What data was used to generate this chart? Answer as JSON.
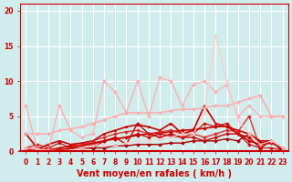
{
  "title": "",
  "xlabel": "Vent moyen/en rafales ( km/h )",
  "ylabel": "",
  "bg_color": "#d0ecec",
  "grid_color": "#ffffff",
  "x_ticks": [
    0,
    1,
    2,
    3,
    4,
    5,
    6,
    7,
    8,
    9,
    10,
    11,
    12,
    13,
    14,
    15,
    16,
    17,
    18,
    19,
    20,
    21,
    22,
    23
  ],
  "y_ticks": [
    0,
    5,
    10,
    15,
    20
  ],
  "ylim": [
    0,
    21
  ],
  "xlim": [
    -0.5,
    23.5
  ],
  "series": [
    {
      "x": [
        0,
        1,
        2,
        3,
        4,
        5,
        6,
        7,
        8,
        9,
        10,
        11,
        12,
        13,
        14,
        15,
        16,
        17,
        18,
        19,
        20,
        21,
        22,
        23
      ],
      "y": [
        2.5,
        0.5,
        0.2,
        0.5,
        0.8,
        0.9,
        1.2,
        1.5,
        1.8,
        2.0,
        2.3,
        2.5,
        2.6,
        2.8,
        3.0,
        3.1,
        3.3,
        3.5,
        3.6,
        2.5,
        1.5,
        1.0,
        1.2,
        0.5
      ],
      "color": "#cc0000",
      "alpha": 1.0,
      "marker": "D",
      "markersize": 2,
      "linewidth": 1.2
    },
    {
      "x": [
        0,
        1,
        2,
        3,
        4,
        5,
        6,
        7,
        8,
        9,
        10,
        11,
        12,
        13,
        14,
        15,
        16,
        17,
        18,
        19,
        20,
        21,
        22,
        23
      ],
      "y": [
        0.5,
        0.3,
        1.0,
        1.5,
        1.0,
        1.2,
        1.5,
        2.5,
        3.0,
        3.5,
        3.8,
        3.5,
        3.0,
        4.0,
        2.5,
        3.0,
        6.5,
        4.0,
        3.5,
        3.0,
        2.5,
        1.5,
        1.5,
        0.3
      ],
      "color": "#cc0000",
      "alpha": 1.0,
      "marker": "^",
      "markersize": 2,
      "linewidth": 1.2
    },
    {
      "x": [
        0,
        1,
        2,
        3,
        4,
        5,
        6,
        7,
        8,
        9,
        10,
        11,
        12,
        13,
        14,
        15,
        16,
        17,
        18,
        19,
        20,
        21,
        22,
        23
      ],
      "y": [
        0.2,
        0.1,
        0.5,
        1.2,
        0.5,
        0.8,
        1.0,
        1.5,
        1.8,
        2.0,
        2.5,
        2.0,
        2.5,
        2.2,
        2.0,
        2.5,
        4.0,
        3.5,
        4.0,
        2.5,
        1.0,
        0.5,
        0.5,
        0.2
      ],
      "color": "#cc0000",
      "alpha": 0.85,
      "marker": "D",
      "markersize": 2,
      "linewidth": 1.0
    },
    {
      "x": [
        0,
        1,
        2,
        3,
        4,
        5,
        6,
        7,
        8,
        9,
        10,
        11,
        12,
        13,
        14,
        15,
        16,
        17,
        18,
        19,
        20,
        21,
        22,
        23
      ],
      "y": [
        0.5,
        1.0,
        0.5,
        0.2,
        0.5,
        1.0,
        1.5,
        2.0,
        2.5,
        2.8,
        3.0,
        2.5,
        2.8,
        3.0,
        2.5,
        2.5,
        2.0,
        2.5,
        3.0,
        2.8,
        5.0,
        0.5,
        1.5,
        0.5
      ],
      "color": "#dd2222",
      "alpha": 0.9,
      "marker": "D",
      "markersize": 2,
      "linewidth": 1.0
    },
    {
      "x": [
        0,
        1,
        2,
        3,
        4,
        5,
        6,
        7,
        8,
        9,
        10,
        11,
        12,
        13,
        14,
        15,
        16,
        17,
        18,
        19,
        20,
        21,
        22,
        23
      ],
      "y": [
        6.5,
        0.3,
        0.2,
        6.5,
        3.0,
        2.0,
        2.5,
        10.0,
        8.5,
        5.5,
        10.0,
        5.0,
        10.5,
        10.0,
        6.5,
        9.5,
        10.0,
        8.5,
        9.5,
        5.0,
        6.5,
        5.0,
        5.0,
        5.0
      ],
      "color": "#ffaaaa",
      "alpha": 0.85,
      "marker": "D",
      "markersize": 2,
      "linewidth": 1.0
    },
    {
      "x": [
        0,
        1,
        2,
        3,
        4,
        5,
        6,
        7,
        8,
        9,
        10,
        11,
        12,
        13,
        14,
        15,
        16,
        17,
        18,
        19,
        20,
        21,
        22,
        23
      ],
      "y": [
        2.5,
        2.5,
        2.5,
        3.0,
        3.2,
        3.5,
        4.0,
        4.5,
        5.0,
        5.5,
        5.5,
        5.5,
        5.5,
        5.8,
        6.0,
        6.0,
        6.2,
        6.5,
        6.5,
        7.0,
        7.5,
        8.0,
        5.0,
        5.0
      ],
      "color": "#ffaaaa",
      "alpha": 0.9,
      "marker": "D",
      "markersize": 2,
      "linewidth": 1.2
    },
    {
      "x": [
        0,
        1,
        2,
        3,
        4,
        5,
        6,
        7,
        8,
        9,
        10,
        11,
        12,
        13,
        14,
        15,
        16,
        17,
        18,
        19,
        20,
        21,
        22,
        23
      ],
      "y": [
        0.2,
        0.1,
        0.2,
        0.2,
        0.5,
        0.5,
        0.5,
        1.5,
        2.0,
        1.0,
        4.0,
        2.5,
        2.0,
        2.5,
        2.0,
        2.0,
        1.5,
        2.0,
        2.5,
        2.5,
        2.0,
        0.5,
        1.5,
        0.1
      ],
      "color": "#cc0000",
      "alpha": 1.0,
      "marker": "D",
      "markersize": 2,
      "linewidth": 1.0
    },
    {
      "x": [
        0,
        1,
        2,
        3,
        4,
        5,
        6,
        7,
        8,
        9,
        10,
        11,
        12,
        13,
        14,
        15,
        16,
        17,
        18,
        19,
        20,
        21,
        22,
        23
      ],
      "y": [
        0.1,
        0.1,
        0.1,
        0.1,
        0.3,
        0.5,
        0.5,
        0.5,
        0.8,
        0.8,
        1.0,
        1.0,
        1.0,
        1.2,
        1.2,
        1.5,
        1.5,
        1.5,
        1.8,
        1.5,
        2.5,
        1.2,
        1.5,
        0.1
      ],
      "color": "#aa0000",
      "alpha": 1.0,
      "marker": "D",
      "markersize": 2,
      "linewidth": 1.0
    },
    {
      "x": [
        0,
        1,
        2,
        3,
        4,
        5,
        6,
        7,
        8,
        9,
        10,
        11,
        12,
        13,
        14,
        15,
        16,
        17,
        18,
        19,
        20,
        21,
        22,
        23
      ],
      "y": [
        0.5,
        0.3,
        0.2,
        0.1,
        0.2,
        0.5,
        0.8,
        1.0,
        0.8,
        1.2,
        1.5,
        1.5,
        1.8,
        2.0,
        2.5,
        2.5,
        5.5,
        16.5,
        10.0,
        4.5,
        2.5,
        1.0,
        1.5,
        0.5
      ],
      "color": "#ffcccc",
      "alpha": 0.85,
      "marker": "D",
      "markersize": 2,
      "linewidth": 1.0
    }
  ],
  "arrow_color": "#cc0000",
  "xlabel_color": "#cc0000",
  "tick_color": "#cc0000",
  "axis_line_color": "#cc0000",
  "xlabel_fontsize": 7,
  "tick_fontsize": 5.5
}
